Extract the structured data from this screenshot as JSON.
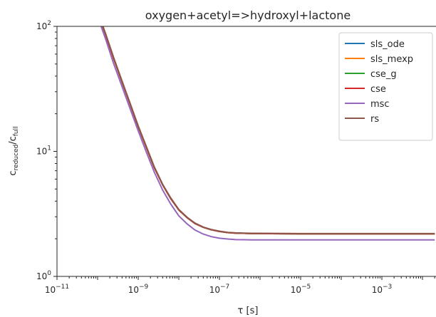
{
  "chart_data": {
    "type": "line",
    "title": "oxygen+acetyl=>hydroxyl+lactone",
    "xlabel": "τ [s]",
    "ylabel_main": "c",
    "ylabel_sub1": "reduced",
    "ylabel_sep": "/c",
    "ylabel_sub2": "full",
    "xscale": "log",
    "yscale": "log",
    "xlim": [
      1e-11,
      0.02
    ],
    "ylim": [
      1,
      100
    ],
    "x_ticks": [
      1e-11,
      1e-09,
      1e-07,
      1e-05,
      0.001
    ],
    "x_tick_labels": [
      {
        "base": "10",
        "exp": "−11"
      },
      {
        "base": "10",
        "exp": "−9"
      },
      {
        "base": "10",
        "exp": "−7"
      },
      {
        "base": "10",
        "exp": "−5"
      },
      {
        "base": "10",
        "exp": "−3"
      }
    ],
    "y_ticks": [
      1,
      10,
      100
    ],
    "y_tick_labels": [
      {
        "base": "10",
        "exp": "0"
      },
      {
        "base": "10",
        "exp": "1"
      },
      {
        "base": "10",
        "exp": "2"
      }
    ],
    "legend_position": "top-right",
    "x": [
      1e-10,
      1.6e-10,
      2.5e-10,
      4e-10,
      6.3e-10,
      1e-09,
      1.6e-09,
      2.5e-09,
      4e-09,
      6.3e-09,
      1e-08,
      1.6e-08,
      2.5e-08,
      4e-08,
      6.3e-08,
      1e-07,
      1.6e-07,
      2.5e-07,
      4e-07,
      6.3e-07,
      1e-06,
      1e-05,
      0.0001,
      0.001,
      0.02
    ],
    "series": [
      {
        "name": "sls_ode",
        "color": "#1f77b4",
        "values": [
          130,
          85,
          55,
          36,
          24,
          15.8,
          10.7,
          7.4,
          5.4,
          4.2,
          3.4,
          2.95,
          2.65,
          2.47,
          2.36,
          2.29,
          2.24,
          2.22,
          2.21,
          2.2,
          2.2,
          2.19,
          2.19,
          2.19,
          2.19
        ]
      },
      {
        "name": "sls_mexp",
        "color": "#ff7f0e",
        "values": [
          130,
          85,
          55,
          36,
          24,
          15.8,
          10.7,
          7.4,
          5.4,
          4.2,
          3.4,
          2.95,
          2.65,
          2.47,
          2.36,
          2.29,
          2.24,
          2.22,
          2.21,
          2.2,
          2.2,
          2.19,
          2.19,
          2.19,
          2.19
        ]
      },
      {
        "name": "cse_g",
        "color": "#2ca02c",
        "values": [
          130,
          85,
          55,
          36,
          24,
          15.8,
          10.7,
          7.4,
          5.4,
          4.2,
          3.4,
          2.95,
          2.65,
          2.47,
          2.36,
          2.29,
          2.24,
          2.22,
          2.21,
          2.2,
          2.2,
          2.19,
          2.19,
          2.19,
          2.19
        ]
      },
      {
        "name": "cse",
        "color": "#d62728",
        "values": [
          130,
          85,
          55,
          36,
          24,
          15.8,
          10.7,
          7.4,
          5.4,
          4.2,
          3.4,
          2.95,
          2.65,
          2.47,
          2.36,
          2.29,
          2.24,
          2.22,
          2.21,
          2.2,
          2.2,
          2.19,
          2.19,
          2.19,
          2.19
        ]
      },
      {
        "name": "msc",
        "color": "#9467bd",
        "values": [
          120,
          78,
          50,
          33,
          22,
          14.6,
          9.8,
          6.8,
          4.9,
          3.8,
          3.05,
          2.63,
          2.35,
          2.18,
          2.08,
          2.02,
          1.99,
          1.97,
          1.965,
          1.96,
          1.96,
          1.96,
          1.96,
          1.96,
          1.96
        ]
      },
      {
        "name": "rs",
        "color": "#8c564b",
        "values": [
          132,
          86,
          56,
          36.5,
          24.3,
          16,
          10.85,
          7.5,
          5.45,
          4.25,
          3.43,
          2.97,
          2.67,
          2.48,
          2.37,
          2.3,
          2.25,
          2.23,
          2.22,
          2.21,
          2.21,
          2.2,
          2.2,
          2.2,
          2.2
        ]
      }
    ]
  }
}
